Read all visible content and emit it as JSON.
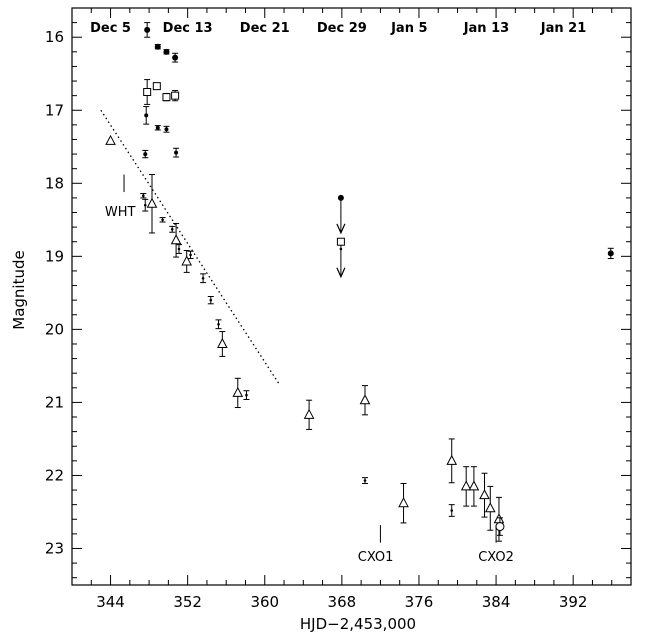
{
  "chart_data": {
    "type": "scatter",
    "title": "",
    "xlabel": "HJD−2,453,000",
    "ylabel": "Magnitude",
    "xlim": [
      340,
      398
    ],
    "ylim": [
      23.5,
      15.6
    ],
    "y_inverted": true,
    "grid": false,
    "x_ticks": [
      344,
      352,
      360,
      368,
      376,
      384,
      392
    ],
    "y_ticks": [
      16,
      17,
      18,
      19,
      20,
      21,
      22,
      23
    ],
    "top_axis_labels": [
      {
        "x": 344,
        "label": "Dec 5"
      },
      {
        "x": 352,
        "label": "Dec 13"
      },
      {
        "x": 360,
        "label": "Dec 21"
      },
      {
        "x": 368,
        "label": "Dec 29"
      },
      {
        "x": 375,
        "label": "Jan 5"
      },
      {
        "x": 383,
        "label": "Jan 13"
      },
      {
        "x": 391,
        "label": "Jan 21"
      }
    ],
    "series": [
      {
        "marker": "filled-circle",
        "points": [
          {
            "x": 347.8,
            "y": 15.9,
            "err": 0.1
          },
          {
            "x": 348.9,
            "y": 16.13,
            "err": 0.03
          },
          {
            "x": 349.8,
            "y": 16.2,
            "err": 0.03
          },
          {
            "x": 350.7,
            "y": 16.28,
            "err": 0.06
          },
          {
            "x": 367.9,
            "y": 18.2,
            "err": 0,
            "upper_limit": true
          },
          {
            "x": 395.9,
            "y": 18.96,
            "err": 0.07
          }
        ]
      },
      {
        "marker": "open-square",
        "points": [
          {
            "x": 347.8,
            "y": 16.75,
            "err": 0.17
          },
          {
            "x": 348.8,
            "y": 16.67,
            "err": 0.04
          },
          {
            "x": 349.8,
            "y": 16.82,
            "err": 0.05
          },
          {
            "x": 350.7,
            "y": 16.8,
            "err": 0.07
          },
          {
            "x": 367.9,
            "y": 18.8,
            "err": 0,
            "upper_limit": true
          }
        ]
      },
      {
        "marker": "small-star",
        "points": [
          {
            "x": 347.7,
            "y": 17.07,
            "err": 0.12
          },
          {
            "x": 348.9,
            "y": 17.24,
            "err": 0.03
          },
          {
            "x": 349.8,
            "y": 17.26,
            "err": 0.04
          },
          {
            "x": 350.8,
            "y": 17.58,
            "err": 0.06
          },
          {
            "x": 347.6,
            "y": 17.6,
            "err": 0.05
          }
        ]
      },
      {
        "marker": "dot",
        "points": [
          {
            "x": 347.4,
            "y": 18.17,
            "err": 0.03
          },
          {
            "x": 347.6,
            "y": 18.3,
            "err": 0.08
          },
          {
            "x": 349.4,
            "y": 18.5,
            "err": 0.03
          },
          {
            "x": 350.4,
            "y": 18.63,
            "err": 0.04
          },
          {
            "x": 351.1,
            "y": 18.9,
            "err": 0.06
          },
          {
            "x": 352.3,
            "y": 18.98,
            "err": 0.05
          },
          {
            "x": 353.6,
            "y": 19.3,
            "err": 0.06
          },
          {
            "x": 354.4,
            "y": 19.6,
            "err": 0.05
          },
          {
            "x": 355.2,
            "y": 19.93,
            "err": 0.06
          },
          {
            "x": 358.1,
            "y": 20.9,
            "err": 0.06
          },
          {
            "x": 370.4,
            "y": 22.07,
            "err": 0.04
          },
          {
            "x": 379.4,
            "y": 22.48,
            "err": 0.08
          },
          {
            "x": 367.9,
            "y": 18.9,
            "err": 0
          }
        ]
      },
      {
        "marker": "open-triangle",
        "points": [
          {
            "x": 344.0,
            "y": 17.42,
            "err": 0
          },
          {
            "x": 348.3,
            "y": 18.28,
            "err": 0.4
          },
          {
            "x": 350.8,
            "y": 18.78,
            "err": 0.23
          },
          {
            "x": 351.9,
            "y": 19.07,
            "err": 0.15
          },
          {
            "x": 355.6,
            "y": 20.2,
            "err": 0.17
          },
          {
            "x": 357.2,
            "y": 20.87,
            "err": 0.2
          },
          {
            "x": 364.6,
            "y": 21.17,
            "err": 0.2
          },
          {
            "x": 370.4,
            "y": 20.97,
            "err": 0.2
          },
          {
            "x": 374.4,
            "y": 22.38,
            "err": 0.27
          },
          {
            "x": 379.4,
            "y": 21.8,
            "err": 0.3
          },
          {
            "x": 380.9,
            "y": 22.15,
            "err": 0.27
          },
          {
            "x": 381.7,
            "y": 22.15,
            "err": 0.27
          },
          {
            "x": 382.8,
            "y": 22.27,
            "err": 0.3
          },
          {
            "x": 383.4,
            "y": 22.45,
            "err": 0.3
          },
          {
            "x": 384.3,
            "y": 22.6,
            "err": 0.3
          }
        ]
      },
      {
        "marker": "open-circle",
        "points": [
          {
            "x": 384.4,
            "y": 22.7,
            "err": 0.12
          }
        ]
      }
    ],
    "fit_line": {
      "style": "dotted",
      "from": [
        343.0,
        17.0
      ],
      "to": [
        361.5,
        20.75
      ]
    },
    "annotations": [
      {
        "text": "WHT",
        "x": 345.0,
        "y": 18.38,
        "tick_x": 345.4,
        "tick_y": [
          17.88,
          18.12
        ]
      },
      {
        "text": "CXO1",
        "x": 371.5,
        "y": 23.1,
        "tick_x": 372.0,
        "tick_y": [
          22.68,
          22.92
        ]
      },
      {
        "text": "CXO2",
        "x": 384.0,
        "y": 23.1,
        "tick_x": 384.0,
        "tick_y": [
          22.68,
          22.92
        ]
      }
    ]
  }
}
